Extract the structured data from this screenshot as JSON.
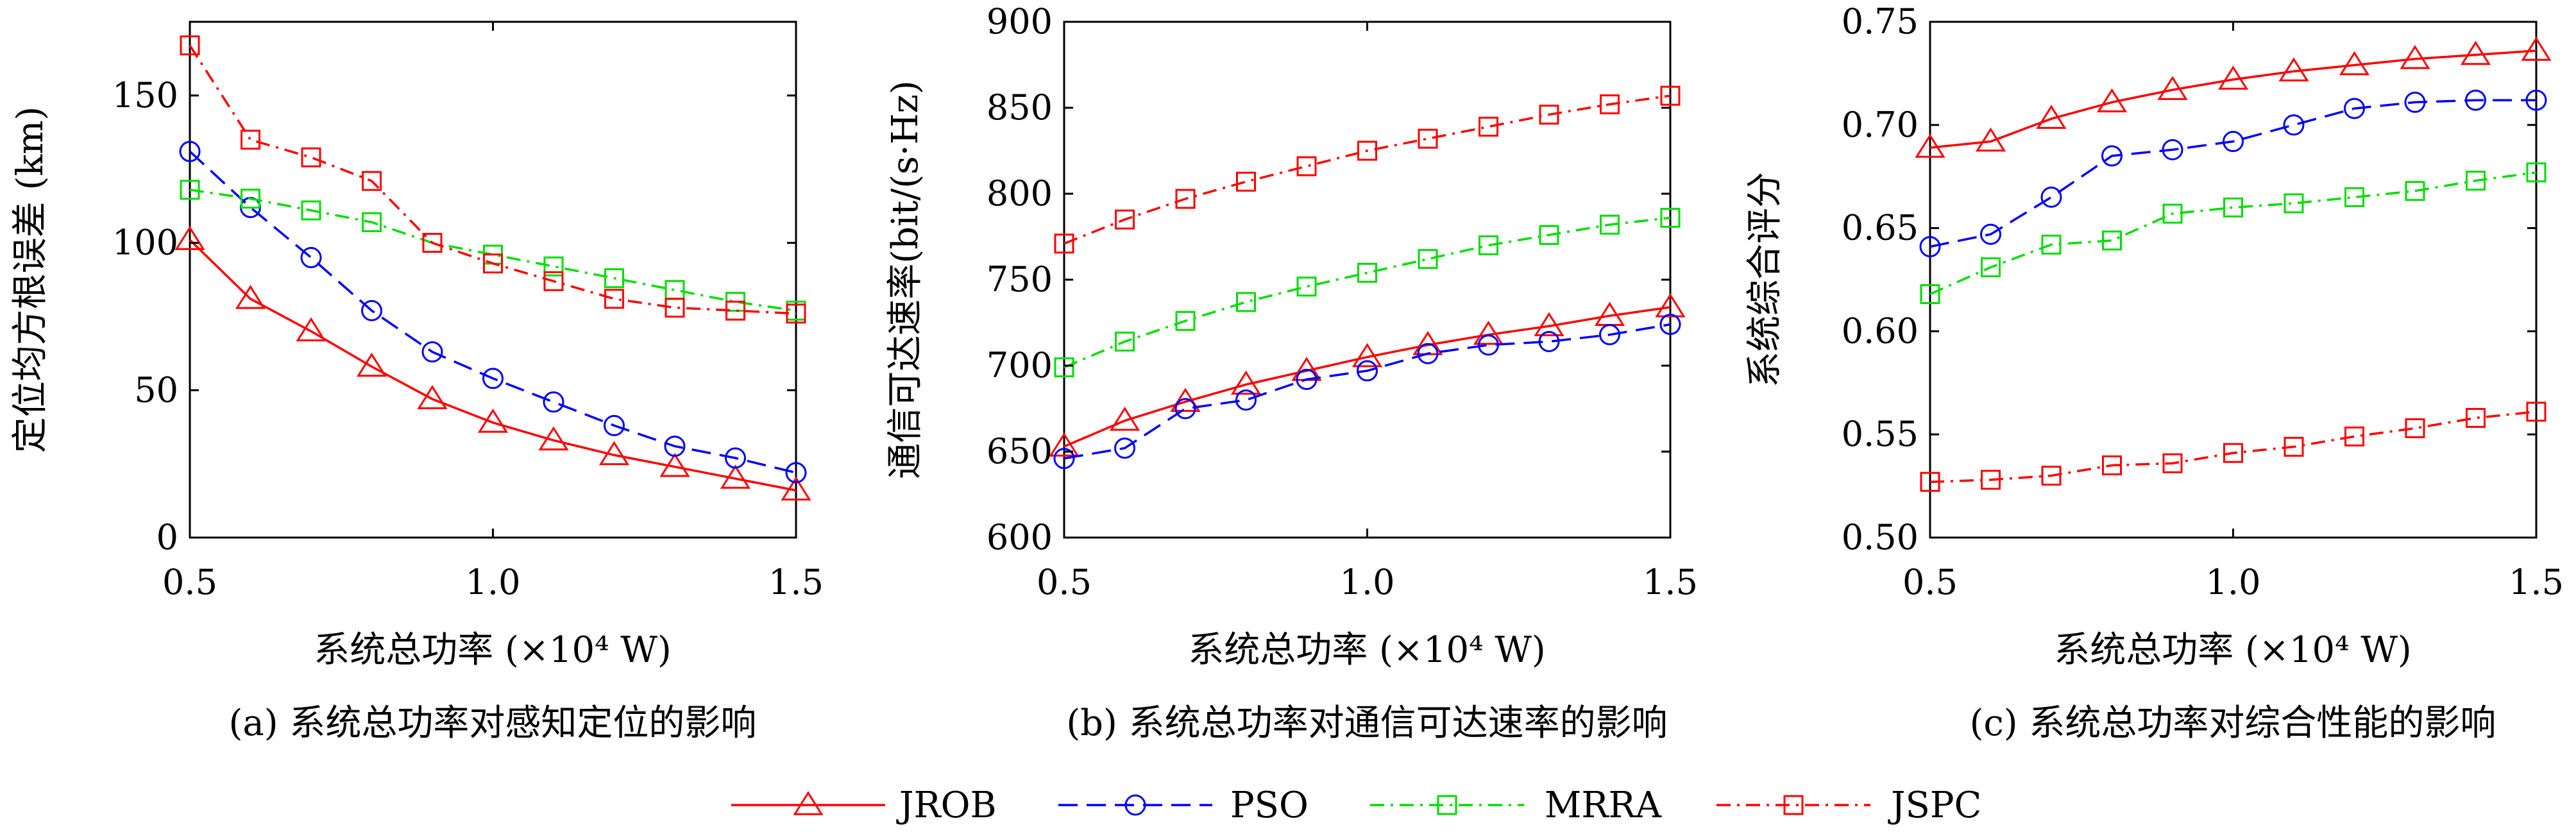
{
  "legend": [
    {
      "name": "JROB",
      "color": "#ff0000",
      "marker": "triangle",
      "dash": "solid"
    },
    {
      "name": "PSO",
      "color": "#0000ff",
      "marker": "circle",
      "dash": "dashed"
    },
    {
      "name": "MRRA",
      "color": "#00dd00",
      "marker": "square",
      "dash": "dashdot"
    },
    {
      "name": "JSPC",
      "color": "#ff0000",
      "marker": "square",
      "dash": "dashdot"
    }
  ],
  "chart_data": [
    {
      "type": "line",
      "caption": "(a) 系统总功率对感知定位的影响",
      "xlabel": "系统总功率 (×10⁴ W)",
      "ylabel": "定位均方根误差 (km)",
      "xlim": [
        0.5,
        1.5
      ],
      "ylim": [
        0,
        175
      ],
      "xticks": [
        0.5,
        1.0,
        1.5
      ],
      "xtick_labels": [
        "0.5",
        "1.0",
        "1.5"
      ],
      "yticks": [
        0,
        50,
        100,
        150
      ],
      "ytick_labels": [
        "0",
        "50",
        "100",
        "150"
      ],
      "grid": false,
      "x": [
        0.5,
        0.6,
        0.7,
        0.8,
        0.9,
        1.0,
        1.1,
        1.2,
        1.3,
        1.4,
        1.5
      ],
      "series": [
        {
          "name": "JROB",
          "values": [
            101,
            81,
            70,
            58,
            47,
            39,
            33,
            28,
            24,
            20,
            16
          ]
        },
        {
          "name": "PSO",
          "values": [
            131,
            112,
            95,
            77,
            63,
            54,
            46,
            38,
            31,
            27,
            22
          ]
        },
        {
          "name": "MRRA",
          "values": [
            118,
            115,
            111,
            107,
            100,
            96,
            92,
            88,
            84,
            80,
            77
          ]
        },
        {
          "name": "JSPC",
          "values": [
            167,
            135,
            129,
            121,
            100,
            93,
            87,
            81,
            78,
            77,
            76
          ]
        }
      ]
    },
    {
      "type": "line",
      "caption": "(b) 系统总功率对通信可达速率的影响",
      "xlabel": "系统总功率 (×10⁴ W)",
      "ylabel": "通信可达速率(bit/(s·Hz)",
      "xlim": [
        0.5,
        1.5
      ],
      "ylim": [
        600,
        900
      ],
      "xticks": [
        0.5,
        1.0,
        1.5
      ],
      "xtick_labels": [
        "0.5",
        "1.0",
        "1.5"
      ],
      "yticks": [
        600,
        650,
        700,
        750,
        800,
        850,
        900
      ],
      "ytick_labels": [
        "600",
        "650",
        "700",
        "750",
        "800",
        "850",
        "900"
      ],
      "grid": false,
      "x": [
        0.5,
        0.6,
        0.7,
        0.8,
        0.9,
        1.0,
        1.1,
        1.2,
        1.3,
        1.4,
        1.5
      ],
      "series": [
        {
          "name": "JROB",
          "values": [
            653,
            668,
            679,
            689,
            697,
            705,
            712,
            718,
            723,
            729,
            734
          ]
        },
        {
          "name": "PSO",
          "values": [
            646,
            652,
            675,
            680,
            692,
            697,
            707,
            712,
            714,
            718,
            724
          ]
        },
        {
          "name": "MRRA",
          "values": [
            699,
            714,
            726,
            737,
            746,
            754,
            762,
            770,
            776,
            782,
            786
          ]
        },
        {
          "name": "JSPC",
          "values": [
            771,
            785,
            797,
            807,
            816,
            825,
            832,
            839,
            846,
            852,
            857
          ]
        }
      ]
    },
    {
      "type": "line",
      "caption": "(c) 系统总功率对综合性能的影响",
      "xlabel": "系统总功率 (×10⁴ W)",
      "ylabel": "系统综合评分",
      "xlim": [
        0.5,
        1.5
      ],
      "ylim": [
        0.5,
        0.75
      ],
      "xticks": [
        0.5,
        1.0,
        1.5
      ],
      "xtick_labels": [
        "0.5",
        "1.0",
        "1.5"
      ],
      "yticks": [
        0.5,
        0.55,
        0.6,
        0.65,
        0.7,
        0.75
      ],
      "ytick_labels": [
        "0.50",
        "0.55",
        "0.60",
        "0.65",
        "0.70",
        "0.75"
      ],
      "grid": false,
      "x": [
        0.5,
        0.6,
        0.7,
        0.8,
        0.9,
        1.0,
        1.1,
        1.2,
        1.3,
        1.4,
        1.5
      ],
      "series": [
        {
          "name": "JROB",
          "values": [
            0.689,
            0.692,
            0.703,
            0.711,
            0.717,
            0.722,
            0.726,
            0.729,
            0.732,
            0.734,
            0.736
          ]
        },
        {
          "name": "PSO",
          "values": [
            0.641,
            0.647,
            0.665,
            0.685,
            0.688,
            0.692,
            0.7,
            0.708,
            0.711,
            0.712,
            0.712
          ]
        },
        {
          "name": "MRRA",
          "values": [
            0.618,
            0.631,
            0.642,
            0.644,
            0.657,
            0.66,
            0.662,
            0.665,
            0.668,
            0.673,
            0.677
          ]
        },
        {
          "name": "JSPC",
          "values": [
            0.527,
            0.528,
            0.53,
            0.535,
            0.536,
            0.541,
            0.544,
            0.549,
            0.553,
            0.558,
            0.561
          ]
        }
      ]
    }
  ]
}
